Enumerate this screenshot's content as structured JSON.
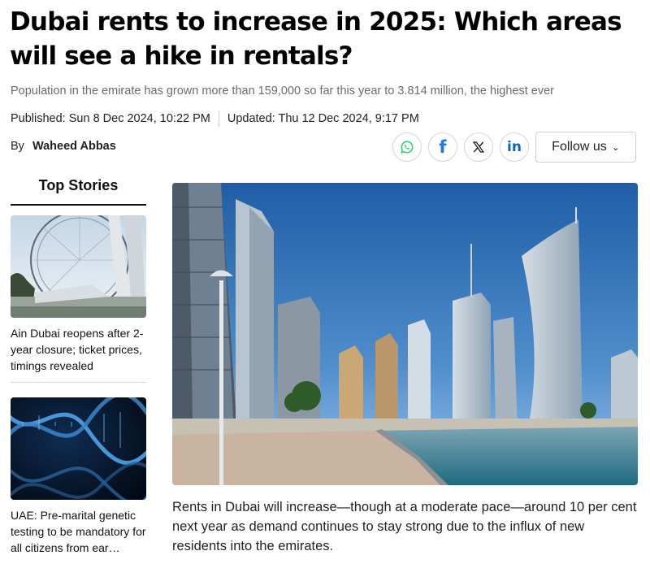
{
  "article": {
    "headline": "Dubai rents to increase in 2025: Which areas will see a hike in rentals?",
    "subhead": "Population in the emirate has grown more than 159,000 so far this year to 3.814 million, the highest ever",
    "published": "Published: Sun 8 Dec 2024, 10:22 PM",
    "updated": "Updated: Thu 12 Dec 2024, 9:17 PM",
    "by_label": "By",
    "author": "Waheed Abbas",
    "lead": "Rents in Dubai will increase—though at a moderate pace—around 10 per cent next year as demand continues to stay strong due to the influx of new residents into the emirates."
  },
  "share": {
    "icons": [
      "whatsapp-icon",
      "facebook-icon",
      "x-icon",
      "linkedin-icon"
    ],
    "facebook_glyph": "f",
    "linkedin_glyph": "in",
    "follow_label": "Follow us",
    "colors": {
      "whatsapp": "#25d366",
      "facebook": "#1877f2",
      "x": "#111111",
      "linkedin": "#0a66c2"
    }
  },
  "sidebar": {
    "title": "Top Stories",
    "stories": [
      {
        "caption": "Ain Dubai reopens after 2-year closure; ticket prices, timings revealed",
        "image": "ferris-wheel-image"
      },
      {
        "caption": "UAE: Pre-marital genetic testing to be mandatory for all citizens from ear…",
        "image": "dna-image"
      }
    ]
  }
}
